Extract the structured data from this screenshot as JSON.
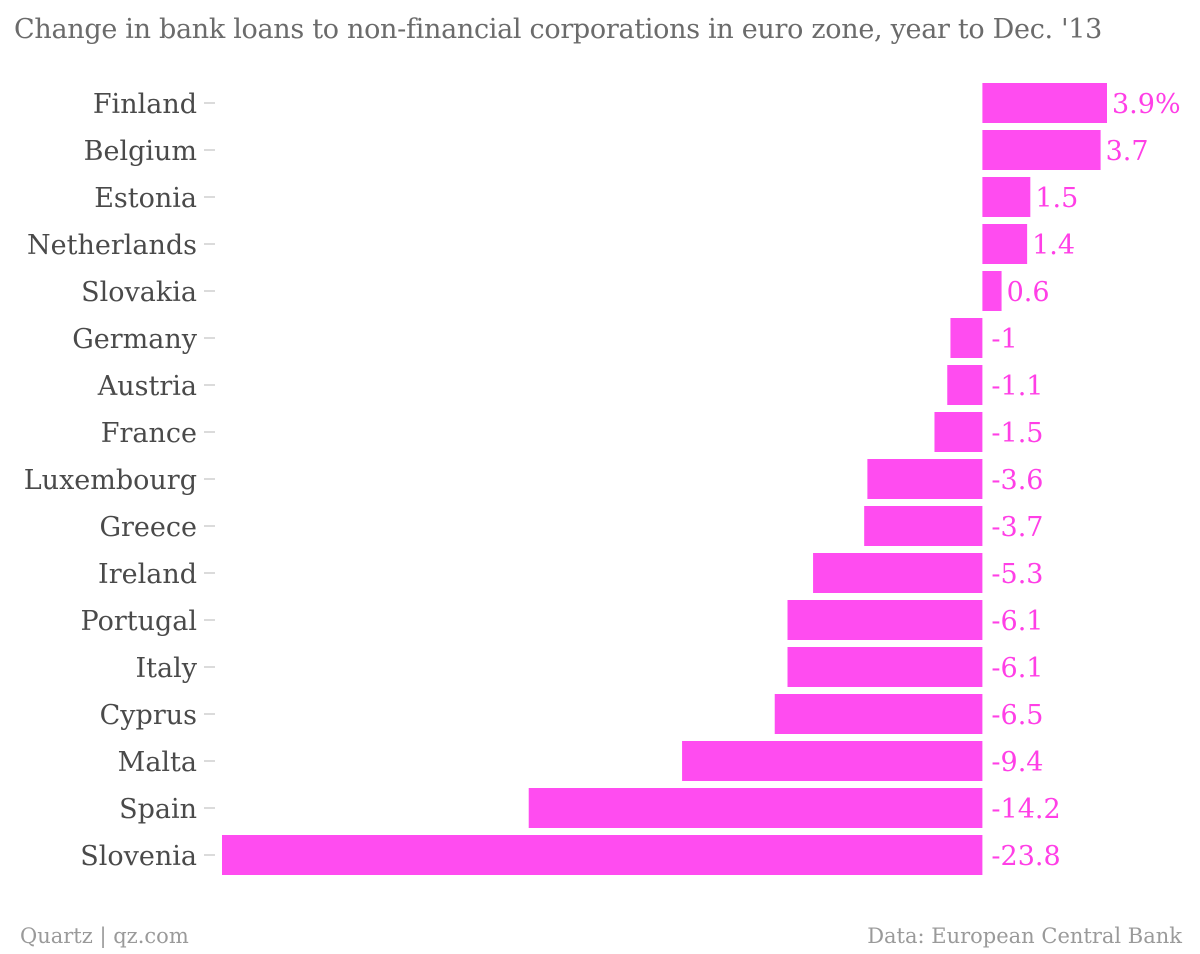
{
  "title": "Change in bank loans to non-financial corporations in euro zone, year to Dec. '13",
  "footer": {
    "source_left": "Quartz | qz.com",
    "source_right": "Data: European Central Bank"
  },
  "colors": {
    "bar": "#ff4cf0",
    "value_label": "#ff3fe6",
    "category_label": "#4a4a4a",
    "tick": "#cfcfcf"
  },
  "chart_data": {
    "type": "bar",
    "orientation": "horizontal",
    "title": "Change in bank loans to non-financial corporations in euro zone, year to Dec. '13",
    "categories": [
      "Finland",
      "Belgium",
      "Estonia",
      "Netherlands",
      "Slovakia",
      "Germany",
      "Austria",
      "France",
      "Luxembourg",
      "Greece",
      "Ireland",
      "Portugal",
      "Italy",
      "Cyprus",
      "Malta",
      "Spain",
      "Slovenia"
    ],
    "values": [
      3.9,
      3.7,
      1.5,
      1.4,
      0.6,
      -1,
      -1.1,
      -1.5,
      -3.6,
      -3.7,
      -5.3,
      -6.1,
      -6.1,
      -6.5,
      -9.4,
      -14.2,
      -23.8
    ],
    "value_labels": [
      "3.9%",
      "3.7",
      "1.5",
      "1.4",
      "0.6",
      "-1",
      "-1.1",
      "-1.5",
      "-3.6",
      "-3.7",
      "-5.3",
      "-6.1",
      "-6.1",
      "-6.5",
      "-9.4",
      "-14.2",
      "-23.8"
    ],
    "xlim": [
      -23.8,
      3.9
    ],
    "grid": false,
    "legend": "none"
  }
}
